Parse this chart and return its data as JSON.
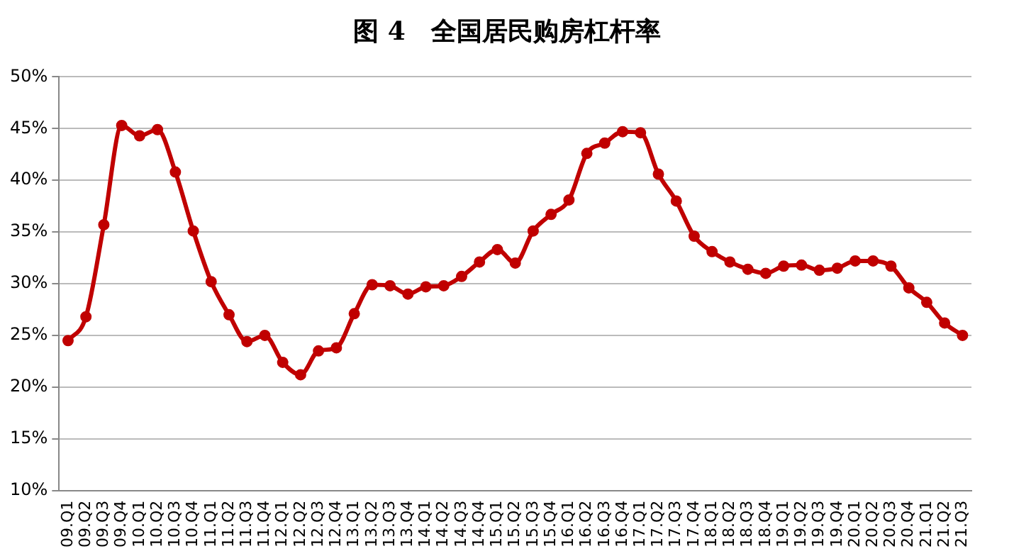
{
  "chart_data": {
    "type": "line",
    "title": "图 4　全国居民购房杠杆率",
    "categories": [
      "09.Q1",
      "09.Q2",
      "09.Q3",
      "09.Q4",
      "10.Q1",
      "10.Q2",
      "10.Q3",
      "10.Q4",
      "11.Q1",
      "11.Q2",
      "11.Q3",
      "11.Q4",
      "12.Q1",
      "12.Q2",
      "12.Q3",
      "12.Q4",
      "13.Q1",
      "13.Q2",
      "13.Q3",
      "13.Q4",
      "14.Q1",
      "14.Q2",
      "14.Q3",
      "14.Q4",
      "15.Q1",
      "15.Q2",
      "15.Q3",
      "15.Q4",
      "16.Q1",
      "16.Q2",
      "16.Q3",
      "16.Q4",
      "17.Q1",
      "17.Q2",
      "17.Q3",
      "17.Q4",
      "18.Q1",
      "18.Q2",
      "18.Q3",
      "18.Q4",
      "19.Q1",
      "19.Q2",
      "19.Q3",
      "19.Q4",
      "20.Q1",
      "20.Q2",
      "20.Q3",
      "20.Q4",
      "21.Q1",
      "21.Q2",
      "21.Q3"
    ],
    "series": [
      {
        "color": "#c00000",
        "values": [
          24.5,
          26.8,
          35.7,
          45.3,
          44.3,
          44.9,
          40.8,
          35.1,
          30.2,
          27.0,
          24.4,
          25.0,
          22.4,
          21.2,
          23.5,
          23.8,
          27.1,
          29.9,
          29.8,
          29.0,
          29.7,
          29.8,
          30.7,
          32.1,
          33.3,
          32.0,
          35.1,
          36.7,
          38.1,
          42.6,
          43.6,
          44.7,
          44.6,
          40.6,
          38.0,
          34.6,
          33.1,
          32.1,
          31.4,
          31.0,
          31.7,
          31.8,
          31.3,
          31.5,
          32.2,
          32.2,
          31.7,
          29.6,
          28.2,
          26.2,
          25.0
        ]
      }
    ],
    "ylim": [
      10,
      50
    ],
    "yticks": [
      {
        "value": 10,
        "label": "10%"
      },
      {
        "value": 15,
        "label": "15%"
      },
      {
        "value": 20,
        "label": "20%"
      },
      {
        "value": 25,
        "label": "25%"
      },
      {
        "value": 30,
        "label": "30%"
      },
      {
        "value": 35,
        "label": "35%"
      },
      {
        "value": 40,
        "label": "40%"
      },
      {
        "value": 45,
        "label": "45%"
      },
      {
        "value": 50,
        "label": "50%"
      }
    ],
    "grid": "y",
    "legend": false,
    "marker": "circle",
    "line_style": "solid"
  }
}
